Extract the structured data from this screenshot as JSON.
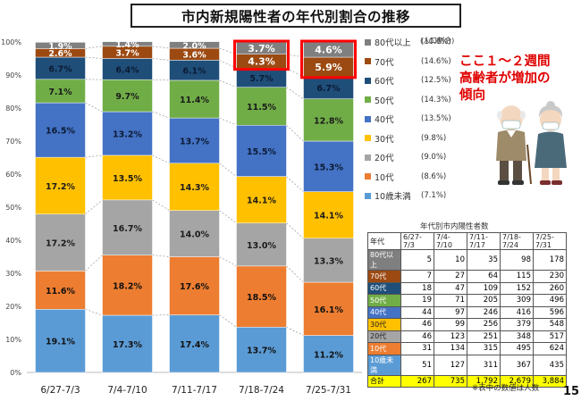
{
  "title": "市内新規陽性者の年代別割合の推移",
  "legend_header": "(人口割合)",
  "callout": [
    "ここ１～２週間",
    "高齢者が増加の",
    "傾向"
  ],
  "colors": {
    "80代以上": "#7f7f7f",
    "70代": "#9c4a12",
    "60代": "#1f4e79",
    "50代": "#70ad47",
    "40代": "#4472c4",
    "30代": "#ffc000",
    "20代": "#a5a5a5",
    "10代": "#ed7d31",
    "10歳未満": "#5b9bd5",
    "highlight": "#ff0000"
  },
  "legend": [
    {
      "name": "80代以上",
      "pop": "(10.6%)"
    },
    {
      "name": "70代",
      "pop": "(14.6%)"
    },
    {
      "name": "60代",
      "pop": "(12.5%)"
    },
    {
      "name": "50代",
      "pop": "(14.3%)"
    },
    {
      "name": "40代",
      "pop": "(13.5%)"
    },
    {
      "name": "30代",
      "pop": "(9.8%)"
    },
    {
      "name": "20代",
      "pop": "(9.0%)"
    },
    {
      "name": "10代",
      "pop": "(8.6%)"
    },
    {
      "name": "10歳未満",
      "pop": "(7.1%)"
    }
  ],
  "chart_data": {
    "type": "bar",
    "stacked": true,
    "categories": [
      "6/27-7/3",
      "7/4-7/10",
      "7/11-7/17",
      "7/18-7/24",
      "7/25-7/31"
    ],
    "ylim": [
      0,
      100
    ],
    "yticks": [
      "0%",
      "10%",
      "20%",
      "30%",
      "40%",
      "50%",
      "60%",
      "70%",
      "80%",
      "90%",
      "100%"
    ],
    "grid": false,
    "series": [
      {
        "name": "10歳未満",
        "values": [
          19.1,
          17.3,
          17.4,
          13.7,
          11.2
        ]
      },
      {
        "name": "10代",
        "values": [
          11.6,
          18.2,
          17.6,
          18.5,
          16.1
        ]
      },
      {
        "name": "20代",
        "values": [
          17.2,
          16.7,
          14.0,
          13.0,
          13.3
        ]
      },
      {
        "name": "30代",
        "values": [
          17.2,
          13.5,
          14.3,
          14.1,
          14.1
        ]
      },
      {
        "name": "40代",
        "values": [
          16.5,
          13.2,
          13.7,
          15.5,
          15.3
        ]
      },
      {
        "name": "50代",
        "values": [
          7.1,
          9.7,
          11.4,
          11.5,
          12.8
        ]
      },
      {
        "name": "60代",
        "values": [
          6.7,
          6.4,
          6.1,
          5.7,
          6.7
        ]
      },
      {
        "name": "70代",
        "values": [
          2.6,
          3.7,
          3.6,
          4.3,
          5.9
        ]
      },
      {
        "name": "80代以上",
        "values": [
          1.9,
          1.4,
          2.0,
          3.7,
          4.6
        ]
      }
    ],
    "highlighted_categories": [
      "7/18-7/24",
      "7/25-7/31"
    ],
    "highlighted_series": [
      "70代",
      "80代以上"
    ]
  },
  "count_table": {
    "title": "年代別市内陽性者数",
    "corner": "年代",
    "columns": [
      "6/27-\n7/3",
      "7/4-\n7/10",
      "7/11-\n7/17",
      "7/18-\n7/24",
      "7/25-\n7/31"
    ],
    "rows": [
      {
        "label": "80代以上",
        "values": [
          "5",
          "10",
          "35",
          "98",
          "178"
        ]
      },
      {
        "label": "70代",
        "values": [
          "7",
          "27",
          "64",
          "115",
          "230"
        ]
      },
      {
        "label": "60代",
        "values": [
          "18",
          "47",
          "109",
          "152",
          "260"
        ]
      },
      {
        "label": "50代",
        "values": [
          "19",
          "71",
          "205",
          "309",
          "496"
        ]
      },
      {
        "label": "40代",
        "values": [
          "44",
          "97",
          "246",
          "416",
          "596"
        ]
      },
      {
        "label": "30代",
        "values": [
          "46",
          "99",
          "256",
          "379",
          "548"
        ]
      },
      {
        "label": "20代",
        "values": [
          "46",
          "123",
          "251",
          "348",
          "517"
        ]
      },
      {
        "label": "10代",
        "values": [
          "31",
          "134",
          "315",
          "495",
          "624"
        ]
      },
      {
        "label": "10歳未満",
        "values": [
          "51",
          "127",
          "311",
          "367",
          "435"
        ]
      }
    ],
    "total": {
      "label": "合計",
      "values": [
        "267",
        "735",
        "1,792",
        "2,679",
        "3,884"
      ]
    }
  },
  "footnote": "※表中の数値は人数",
  "page_number": "15"
}
